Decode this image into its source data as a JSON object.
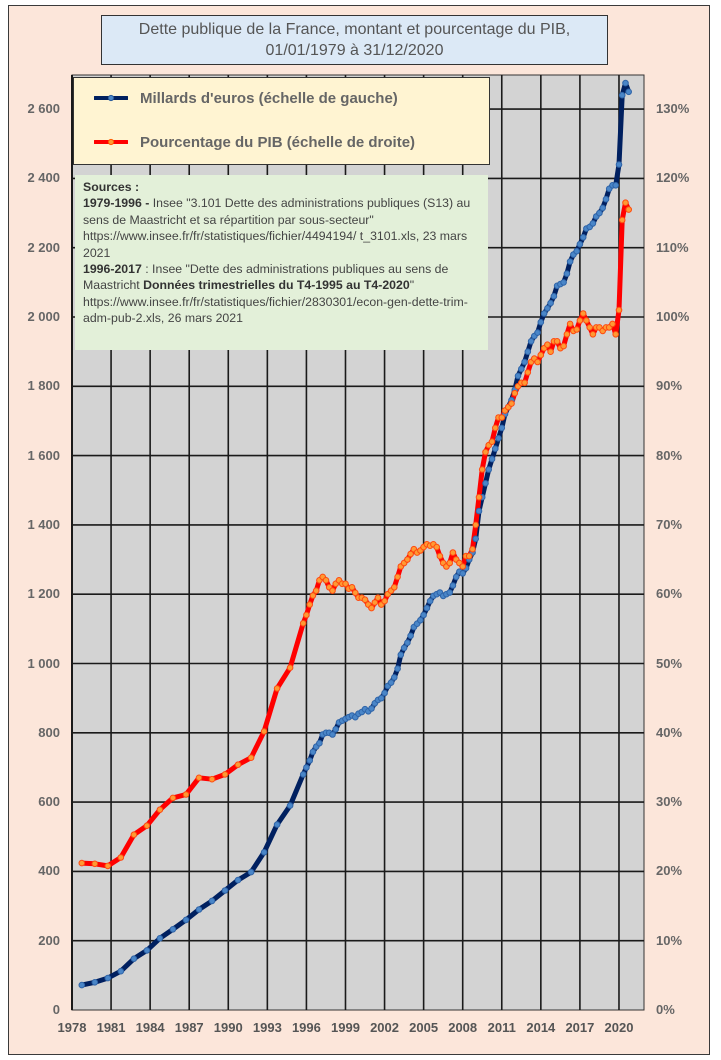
{
  "chart_data": {
    "type": "line",
    "title": "Dette publique de la France, montant et pourcentage du PIB, 01/01/1979 à 31/12/2020",
    "title_lines": [
      "Dette publique de la France, montant et pourcentage du PIB,",
      "01/01/1979 à 31/12/2020"
    ],
    "xlabel": "",
    "ylabel_left": "",
    "ylabel_right": "",
    "xlim": [
      1978,
      2022
    ],
    "ylim_left": [
      0,
      2700
    ],
    "ylim_right": [
      0,
      135
    ],
    "grid": true,
    "legend_position": "top-left",
    "x_ticks": [
      "1978",
      "1981",
      "1984",
      "1987",
      "1990",
      "1993",
      "1996",
      "1999",
      "2002",
      "2005",
      "2008",
      "2011",
      "2014",
      "2017",
      "2020"
    ],
    "y_ticks_left": [
      "0",
      "200",
      "400",
      "600",
      "800",
      "1 000",
      "1 200",
      "1 400",
      "1 600",
      "1 800",
      "2 000",
      "2 200",
      "2 400",
      "2 600"
    ],
    "y_ticks_right": [
      "0%",
      "10%",
      "20%",
      "30%",
      "40%",
      "50%",
      "60%",
      "70%",
      "80%",
      "90%",
      "100%",
      "110%",
      "120%",
      "130%"
    ],
    "series": [
      {
        "name": "Millards d'euros (échelle de gauche)",
        "axis": "left",
        "color": "#002060",
        "marker_color": "#4a86c8",
        "points": [
          [
            1978.75,
            72
          ],
          [
            1979.75,
            80
          ],
          [
            1980.75,
            92
          ],
          [
            1981.75,
            112
          ],
          [
            1982.75,
            148
          ],
          [
            1983.75,
            172
          ],
          [
            1984.75,
            207
          ],
          [
            1985.75,
            233
          ],
          [
            1986.75,
            260
          ],
          [
            1987.75,
            290
          ],
          [
            1988.75,
            315
          ],
          [
            1989.75,
            345
          ],
          [
            1990.75,
            375
          ],
          [
            1991.75,
            398
          ],
          [
            1992.75,
            455
          ],
          [
            1993.75,
            535
          ],
          [
            1994.75,
            590
          ],
          [
            1995.75,
            680
          ],
          [
            1996.0,
            700
          ],
          [
            1996.25,
            720
          ],
          [
            1996.5,
            745
          ],
          [
            1996.75,
            760
          ],
          [
            1997.0,
            770
          ],
          [
            1997.25,
            795
          ],
          [
            1997.5,
            800
          ],
          [
            1997.75,
            800
          ],
          [
            1998.0,
            795
          ],
          [
            1998.25,
            810
          ],
          [
            1998.5,
            830
          ],
          [
            1998.75,
            835
          ],
          [
            1999.0,
            840
          ],
          [
            1999.25,
            845
          ],
          [
            1999.5,
            850
          ],
          [
            1999.75,
            845
          ],
          [
            2000.0,
            855
          ],
          [
            2000.25,
            860
          ],
          [
            2000.5,
            868
          ],
          [
            2000.75,
            862
          ],
          [
            2001.0,
            870
          ],
          [
            2001.25,
            885
          ],
          [
            2001.5,
            895
          ],
          [
            2001.75,
            900
          ],
          [
            2002.0,
            915
          ],
          [
            2002.25,
            935
          ],
          [
            2002.5,
            945
          ],
          [
            2002.75,
            960
          ],
          [
            2003.0,
            985
          ],
          [
            2003.25,
            1025
          ],
          [
            2003.5,
            1045
          ],
          [
            2003.75,
            1060
          ],
          [
            2004.0,
            1080
          ],
          [
            2004.25,
            1105
          ],
          [
            2004.5,
            1115
          ],
          [
            2004.75,
            1125
          ],
          [
            2005.0,
            1140
          ],
          [
            2005.25,
            1160
          ],
          [
            2005.5,
            1180
          ],
          [
            2005.75,
            1195
          ],
          [
            2006.0,
            1200
          ],
          [
            2006.25,
            1205
          ],
          [
            2006.5,
            1195
          ],
          [
            2006.75,
            1200
          ],
          [
            2007.0,
            1205
          ],
          [
            2007.25,
            1225
          ],
          [
            2007.5,
            1250
          ],
          [
            2007.75,
            1265
          ],
          [
            2008.0,
            1260
          ],
          [
            2008.25,
            1275
          ],
          [
            2008.5,
            1300
          ],
          [
            2008.75,
            1320
          ],
          [
            2009.0,
            1360
          ],
          [
            2009.25,
            1440
          ],
          [
            2009.5,
            1480
          ],
          [
            2009.75,
            1520
          ],
          [
            2010.0,
            1560
          ],
          [
            2010.25,
            1590
          ],
          [
            2010.5,
            1620
          ],
          [
            2010.75,
            1650
          ],
          [
            2011.0,
            1680
          ],
          [
            2011.25,
            1720
          ],
          [
            2011.5,
            1740
          ],
          [
            2011.75,
            1760
          ],
          [
            2012.0,
            1790
          ],
          [
            2012.25,
            1830
          ],
          [
            2012.5,
            1850
          ],
          [
            2012.75,
            1870
          ],
          [
            2013.0,
            1900
          ],
          [
            2013.25,
            1930
          ],
          [
            2013.5,
            1945
          ],
          [
            2013.75,
            1955
          ],
          [
            2014.0,
            1985
          ],
          [
            2014.25,
            2010
          ],
          [
            2014.5,
            2025
          ],
          [
            2014.75,
            2040
          ],
          [
            2015.0,
            2060
          ],
          [
            2015.25,
            2090
          ],
          [
            2015.5,
            2095
          ],
          [
            2015.75,
            2100
          ],
          [
            2016.0,
            2125
          ],
          [
            2016.25,
            2160
          ],
          [
            2016.5,
            2180
          ],
          [
            2016.75,
            2190
          ],
          [
            2017.0,
            2210
          ],
          [
            2017.25,
            2230
          ],
          [
            2017.5,
            2255
          ],
          [
            2017.75,
            2260
          ],
          [
            2018.0,
            2270
          ],
          [
            2018.25,
            2290
          ],
          [
            2018.5,
            2300
          ],
          [
            2018.75,
            2315
          ],
          [
            2019.0,
            2340
          ],
          [
            2019.25,
            2370
          ],
          [
            2019.5,
            2380
          ],
          [
            2019.75,
            2380
          ],
          [
            2020.0,
            2440
          ],
          [
            2020.25,
            2640
          ],
          [
            2020.5,
            2675
          ],
          [
            2020.75,
            2650
          ]
        ]
      },
      {
        "name": "Pourcentage du PIB (échelle de droite)",
        "axis": "right",
        "color": "#ff0000",
        "marker_color": "#ff9a33",
        "points": [
          [
            1978.75,
            21.2
          ],
          [
            1979.75,
            21.1
          ],
          [
            1980.75,
            20.8
          ],
          [
            1981.75,
            22.0
          ],
          [
            1982.75,
            25.3
          ],
          [
            1983.75,
            26.6
          ],
          [
            1984.75,
            28.9
          ],
          [
            1985.75,
            30.6
          ],
          [
            1986.75,
            31.1
          ],
          [
            1987.75,
            33.5
          ],
          [
            1988.75,
            33.3
          ],
          [
            1989.75,
            34.0
          ],
          [
            1990.75,
            35.4
          ],
          [
            1991.75,
            36.4
          ],
          [
            1992.75,
            40.2
          ],
          [
            1993.75,
            46.4
          ],
          [
            1994.75,
            49.4
          ],
          [
            1995.75,
            55.8
          ],
          [
            1996.0,
            57.0
          ],
          [
            1996.25,
            58.5
          ],
          [
            1996.5,
            59.8
          ],
          [
            1996.75,
            60.5
          ],
          [
            1997.0,
            62.0
          ],
          [
            1997.25,
            62.5
          ],
          [
            1997.5,
            62.0
          ],
          [
            1997.75,
            61.0
          ],
          [
            1998.0,
            60.5
          ],
          [
            1998.25,
            61.5
          ],
          [
            1998.5,
            62.0
          ],
          [
            1998.75,
            61.5
          ],
          [
            1999.0,
            61.5
          ],
          [
            1999.25,
            60.8
          ],
          [
            1999.5,
            61.0
          ],
          [
            1999.75,
            60.2
          ],
          [
            2000.0,
            59.5
          ],
          [
            2000.25,
            59.5
          ],
          [
            2000.5,
            59.2
          ],
          [
            2000.75,
            58.5
          ],
          [
            2001.0,
            58.0
          ],
          [
            2001.25,
            58.8
          ],
          [
            2001.5,
            59.5
          ],
          [
            2001.75,
            58.5
          ],
          [
            2002.0,
            59.0
          ],
          [
            2002.25,
            60.0
          ],
          [
            2002.5,
            60.5
          ],
          [
            2002.75,
            61.0
          ],
          [
            2003.0,
            62.5
          ],
          [
            2003.25,
            64.0
          ],
          [
            2003.5,
            64.5
          ],
          [
            2003.75,
            65.0
          ],
          [
            2004.0,
            65.8
          ],
          [
            2004.25,
            66.5
          ],
          [
            2004.5,
            66.0
          ],
          [
            2004.75,
            66.3
          ],
          [
            2005.0,
            66.8
          ],
          [
            2005.25,
            67.2
          ],
          [
            2005.5,
            67.0
          ],
          [
            2005.75,
            67.2
          ],
          [
            2006.0,
            66.8
          ],
          [
            2006.25,
            65.5
          ],
          [
            2006.5,
            64.5
          ],
          [
            2006.75,
            64.0
          ],
          [
            2007.0,
            64.5
          ],
          [
            2007.25,
            66.0
          ],
          [
            2007.5,
            65.0
          ],
          [
            2007.75,
            64.5
          ],
          [
            2008.0,
            64.0
          ],
          [
            2008.25,
            65.5
          ],
          [
            2008.5,
            65.5
          ],
          [
            2008.75,
            66.5
          ],
          [
            2009.0,
            70.0
          ],
          [
            2009.25,
            74.0
          ],
          [
            2009.5,
            78.0
          ],
          [
            2009.75,
            80.5
          ],
          [
            2010.0,
            81.5
          ],
          [
            2010.25,
            82.0
          ],
          [
            2010.5,
            84.0
          ],
          [
            2010.75,
            85.5
          ],
          [
            2011.0,
            85.5
          ],
          [
            2011.25,
            86.5
          ],
          [
            2011.5,
            87.0
          ],
          [
            2011.75,
            87.5
          ],
          [
            2012.0,
            89.0
          ],
          [
            2012.25,
            90.0
          ],
          [
            2012.5,
            90.5
          ],
          [
            2012.75,
            90.5
          ],
          [
            2013.0,
            92.0
          ],
          [
            2013.25,
            93.5
          ],
          [
            2013.5,
            94.0
          ],
          [
            2013.75,
            93.5
          ],
          [
            2014.0,
            94.5
          ],
          [
            2014.25,
            95.5
          ],
          [
            2014.5,
            96.0
          ],
          [
            2014.75,
            95.0
          ],
          [
            2015.0,
            96.5
          ],
          [
            2015.25,
            96.5
          ],
          [
            2015.5,
            95.5
          ],
          [
            2015.75,
            95.8
          ],
          [
            2016.0,
            97.5
          ],
          [
            2016.25,
            99.0
          ],
          [
            2016.5,
            98.0
          ],
          [
            2016.75,
            98.2
          ],
          [
            2017.0,
            99.5
          ],
          [
            2017.25,
            100.5
          ],
          [
            2017.5,
            99.5
          ],
          [
            2017.75,
            98.5
          ],
          [
            2018.0,
            97.5
          ],
          [
            2018.25,
            98.5
          ],
          [
            2018.5,
            98.5
          ],
          [
            2018.75,
            98.0
          ],
          [
            2019.0,
            98.5
          ],
          [
            2019.25,
            98.5
          ],
          [
            2019.5,
            99.0
          ],
          [
            2019.75,
            97.5
          ],
          [
            2020.0,
            101.0
          ],
          [
            2020.25,
            114.0
          ],
          [
            2020.5,
            116.5
          ],
          [
            2020.75,
            115.5
          ]
        ]
      }
    ]
  },
  "legend": {
    "series_1": "Millards d'euros (échelle de gauche)",
    "series_2": "Pourcentage du PIB (échelle de droite)"
  },
  "sources": {
    "heading": "Sources :",
    "entry_1_period": "1979-1996 -",
    "entry_1_text": " Insee \"3.101 Dette des administrations publiques (S13) au sens de Maastricht et sa répartition par sous-secteur\" https://www.insee.fr/fr/statistiques/fichier/4494194/ t_3101.xls, 23 mars 2021",
    "entry_2_period": "1996-2017",
    "entry_2_text_a": " : Insee \"Dette des administrations publiques au sens de Maastricht ",
    "entry_2_bold": "Données trimestrielles du T4-1995 au T4-2020",
    "entry_2_text_b": "\" https://www.insee.fr/fr/statistiques/fichier/2830301/econ-gen-dette-trim-adm-pub-2.xls, 26 mars 2021"
  }
}
